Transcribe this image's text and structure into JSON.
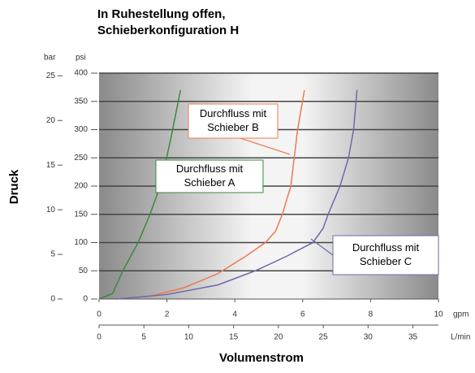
{
  "chart_data": {
    "type": "line",
    "title": [
      "In Ruhestellung offen,",
      "Schieberkonfiguration H"
    ],
    "ylabel": "Druck",
    "xlabel": "Volumenstrom",
    "y_unit": "psi",
    "y2_unit": "bar",
    "x_unit": "gpm",
    "x2_unit": "L/min",
    "ylim": [
      0,
      400
    ],
    "yticks": [
      0,
      50,
      100,
      150,
      200,
      250,
      300,
      350,
      400
    ],
    "y2lim": [
      0,
      25.3
    ],
    "y2ticks": [
      0,
      5,
      10,
      15,
      20,
      25
    ],
    "xlim": [
      0,
      10
    ],
    "xticks": [
      0,
      2,
      4,
      6,
      8,
      10
    ],
    "x2lim": [
      0,
      37.85
    ],
    "x2ticks": [
      0,
      5,
      10,
      15,
      20,
      25,
      30,
      35
    ],
    "grid": true,
    "series": [
      {
        "name": "Schieber A",
        "color": "#3a8a3a",
        "x": [
          0,
          0.4,
          0.7,
          1.15,
          1.5,
          1.8,
          2.1,
          2.4
        ],
        "values": [
          0,
          10,
          50,
          100,
          150,
          200,
          280,
          370
        ]
      },
      {
        "name": "Schieber B",
        "color": "#f07850",
        "x": [
          0.5,
          1.5,
          2.5,
          3.5,
          4.3,
          4.9,
          5.2,
          5.4,
          5.65,
          5.85,
          6.05
        ],
        "values": [
          0,
          5,
          20,
          45,
          75,
          100,
          120,
          150,
          200,
          300,
          370
        ]
      },
      {
        "name": "Schieber C",
        "color": "#6a6aa8",
        "x": [
          0.5,
          2,
          3.5,
          4.6,
          5.5,
          6.3,
          6.6,
          6.75,
          7.1,
          7.35,
          7.5,
          7.6
        ],
        "values": [
          0,
          8,
          25,
          50,
          75,
          100,
          125,
          150,
          200,
          250,
          300,
          370
        ]
      }
    ],
    "annotations": [
      [
        "Durchfluss mit",
        "Schieber A"
      ],
      [
        "Durchfluss mit",
        "Schieber B"
      ],
      [
        "Durchfluss mit",
        "Schieber C"
      ]
    ]
  }
}
